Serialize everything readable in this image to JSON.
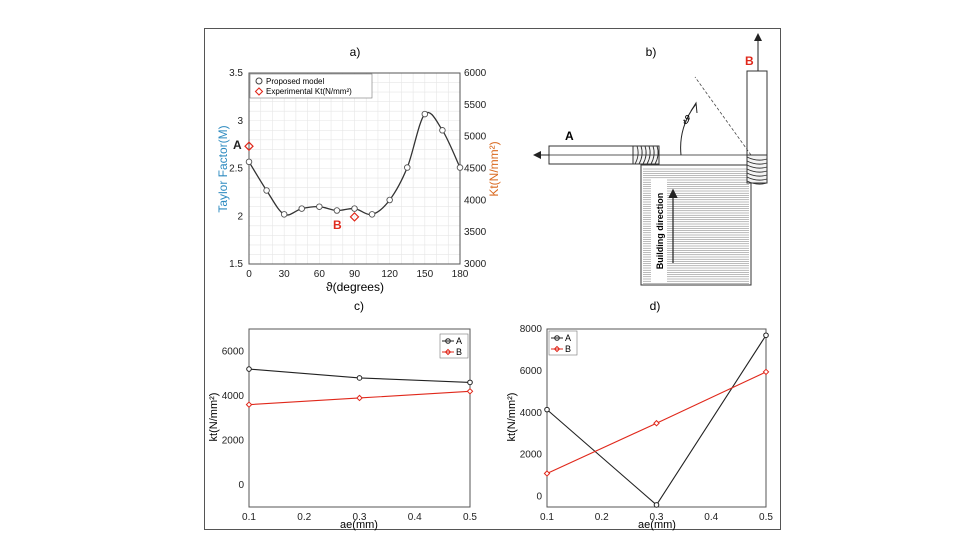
{
  "colors": {
    "blue_axis": "#2e8bc0",
    "orange_axis": "#d9691f",
    "red": "#e0281b",
    "black": "#222222",
    "grid": "#e6e6e6"
  },
  "chart_data": [
    {
      "id": "a",
      "type": "line",
      "title": "a)",
      "xlabel": "ϑ(degrees)",
      "ylabel": "Taylor Factor(M)",
      "ylabel_right": "Kt(N/mm²)",
      "xlim": [
        0,
        180
      ],
      "ylim": [
        1.5,
        3.5
      ],
      "ylim_right": [
        3000,
        6000
      ],
      "xticks": [
        "0",
        "30",
        "60",
        "90",
        "120",
        "150",
        "180"
      ],
      "yticks": [
        "1.5",
        "2",
        "2.5",
        "3",
        "3.5"
      ],
      "yticks_right": [
        "3000",
        "3500",
        "4000",
        "4500",
        "5000",
        "5500",
        "6000"
      ],
      "legend": [
        "Proposed model",
        "Experimental Kt(N/mm²)"
      ],
      "series": [
        {
          "name": "Proposed model",
          "x": [
            0,
            15,
            30,
            45,
            60,
            75,
            90,
            105,
            120,
            135,
            150,
            165,
            180
          ],
          "y": [
            2.57,
            2.27,
            2.02,
            2.08,
            2.1,
            2.06,
            2.08,
            2.02,
            2.17,
            2.51,
            3.07,
            2.9,
            2.51
          ]
        },
        {
          "name": "Experimental Kt(N/mm²)",
          "x": [
            0,
            90
          ],
          "y_right": [
            4850,
            3740
          ]
        }
      ],
      "annotations": [
        {
          "text": "A"
        },
        {
          "text": "B"
        }
      ]
    },
    {
      "id": "c",
      "type": "line",
      "title": "c)",
      "xlabel": "ae(mm)",
      "ylabel": "kt(N/mm²)",
      "xlim": [
        0.1,
        0.5
      ],
      "ylim": [
        -1000,
        7000
      ],
      "xticks": [
        "0.1",
        "0.2",
        "0.3",
        "0.4",
        "0.5"
      ],
      "yticks": [
        "0",
        "2000",
        "4000",
        "6000"
      ],
      "legend": [
        "A",
        "B"
      ],
      "series": [
        {
          "name": "A",
          "x": [
            0.1,
            0.3,
            0.5
          ],
          "y": [
            5200,
            4800,
            4600
          ]
        },
        {
          "name": "B",
          "x": [
            0.1,
            0.3,
            0.5
          ],
          "y": [
            3600,
            3900,
            4200
          ]
        }
      ]
    },
    {
      "id": "d",
      "type": "line",
      "title": "d)",
      "xlabel": "ae(mm)",
      "ylabel": "kt(N/mm²)",
      "xlim": [
        0.1,
        0.5
      ],
      "ylim": [
        -500,
        8000
      ],
      "xticks": [
        "0.1",
        "0.2",
        "0.3",
        "0.4",
        "0.5"
      ],
      "yticks": [
        "0",
        "2000",
        "4000",
        "6000",
        "8000"
      ],
      "legend": [
        "A",
        "B"
      ],
      "series": [
        {
          "name": "A",
          "x": [
            0.1,
            0.3,
            0.5
          ],
          "y": [
            4150,
            -400,
            7700
          ]
        },
        {
          "name": "B",
          "x": [
            0.1,
            0.3,
            0.5
          ],
          "y": [
            1100,
            3500,
            5950
          ]
        }
      ]
    }
  ],
  "diagram_b": {
    "title": "b)",
    "label_a": "A",
    "label_b": "B",
    "angle": "ϑ",
    "building_direction": "Building direction"
  }
}
